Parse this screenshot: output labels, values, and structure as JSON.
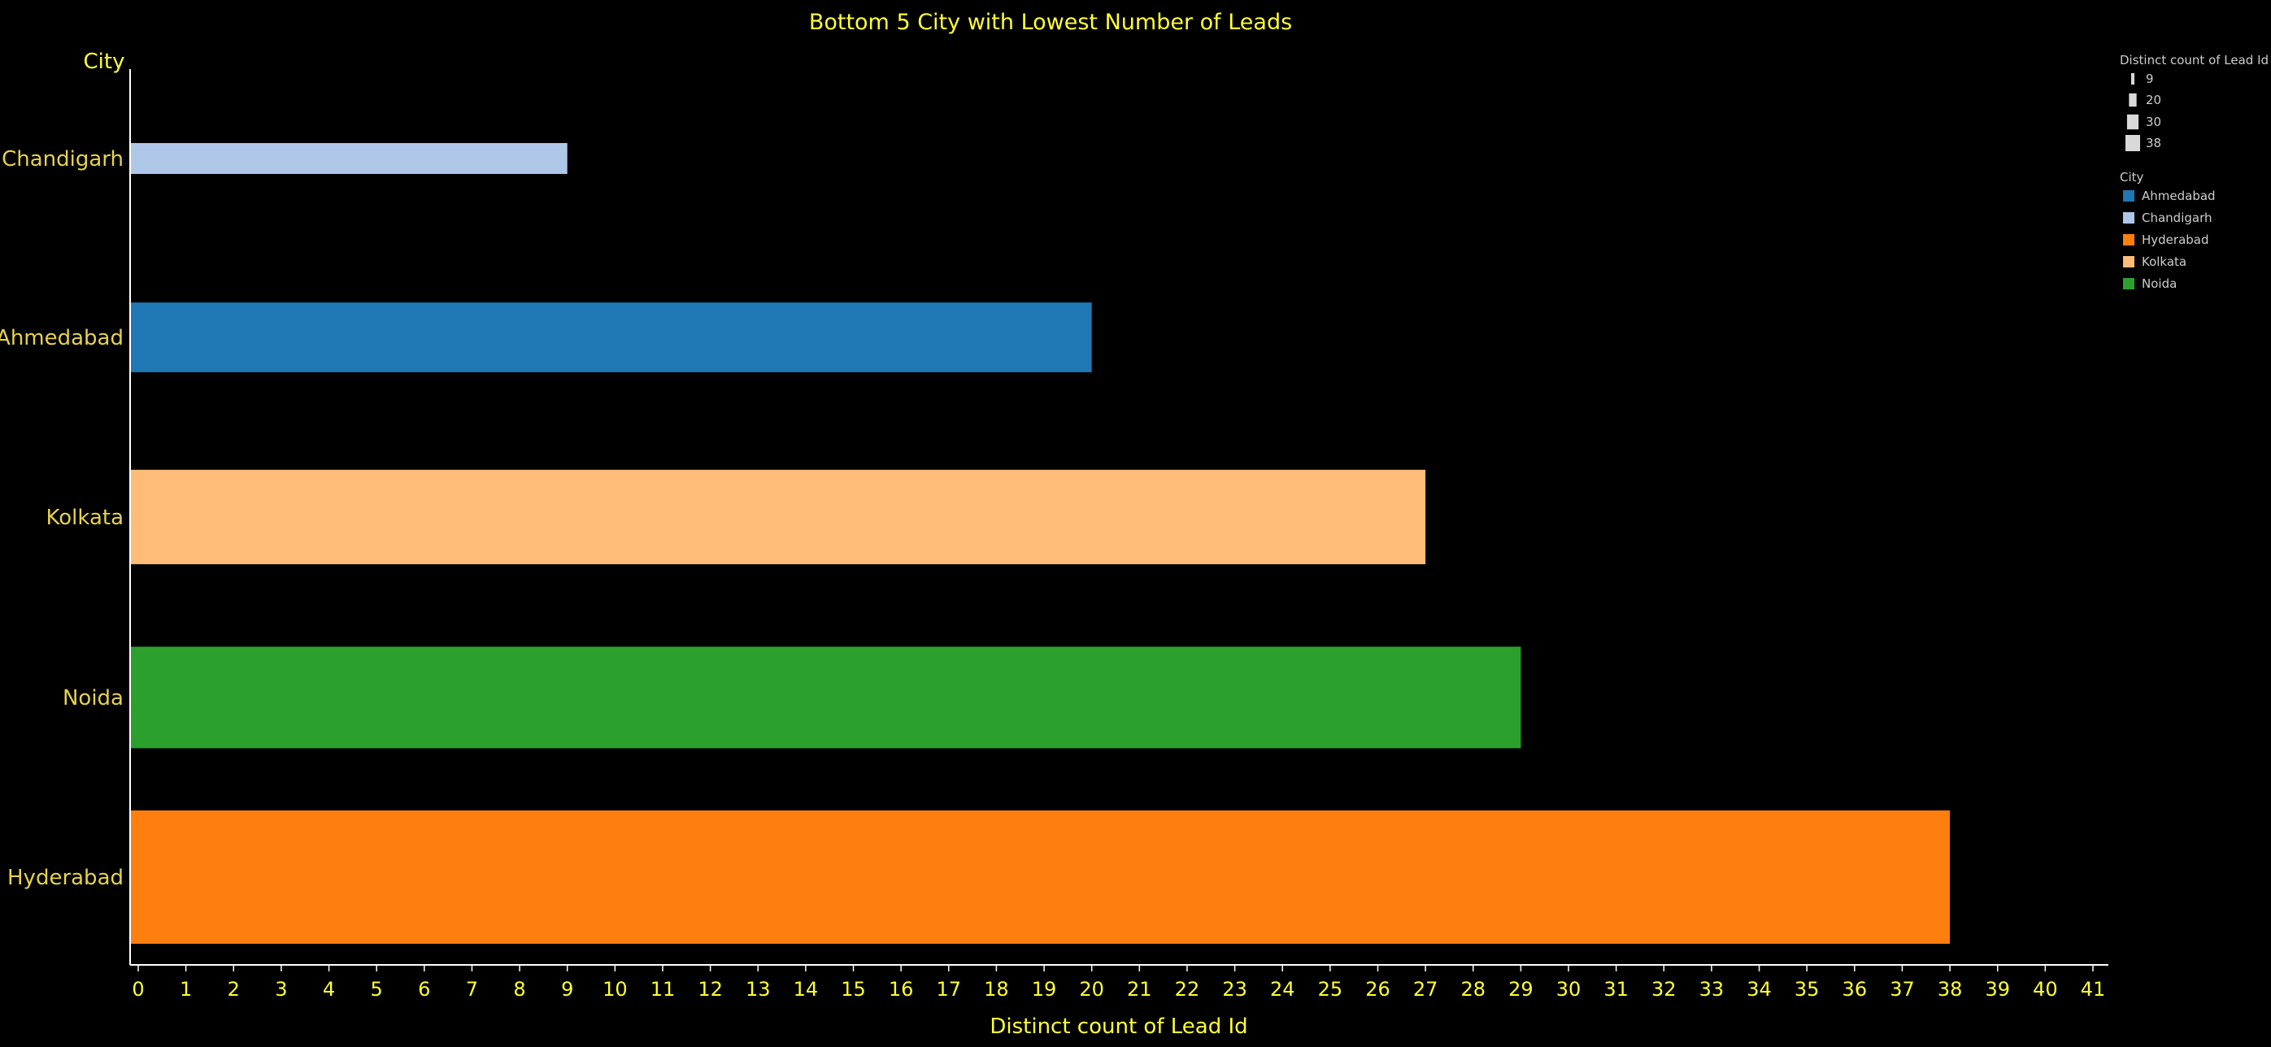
{
  "chart_data": {
    "type": "bar",
    "orientation": "horizontal",
    "title": "Bottom 5 City with Lowest Number of Leads",
    "xlabel": "Distinct count of Lead Id",
    "ylabel": "City",
    "xlim": [
      0,
      41
    ],
    "x_ticks": [
      0,
      1,
      2,
      3,
      4,
      5,
      6,
      7,
      8,
      9,
      10,
      11,
      12,
      13,
      14,
      15,
      16,
      17,
      18,
      19,
      20,
      21,
      22,
      23,
      24,
      25,
      26,
      27,
      28,
      29,
      30,
      31,
      32,
      33,
      34,
      35,
      36,
      37,
      38,
      39,
      40,
      41
    ],
    "grid": false,
    "categories": [
      "Chandigarh",
      "Ahmedabad",
      "Kolkata",
      "Noida",
      "Hyderabad"
    ],
    "values": [
      9,
      20,
      27,
      29,
      38
    ],
    "colors": {
      "Ahmedabad": "#1f77b4",
      "Chandigarh": "#aec7e8",
      "Hyderabad": "#ff7f0e",
      "Kolkata": "#ffbb78",
      "Noida": "#2ca02c"
    },
    "bar_size_encodes": "Distinct count of Lead Id",
    "legend_placement": "top-right",
    "size_legend": {
      "title": "Distinct count of Lead Id",
      "values": [
        9,
        20,
        30,
        38
      ]
    },
    "color_legend": {
      "title": "City",
      "items": [
        "Ahmedabad",
        "Chandigarh",
        "Hyderabad",
        "Kolkata",
        "Noida"
      ]
    }
  }
}
